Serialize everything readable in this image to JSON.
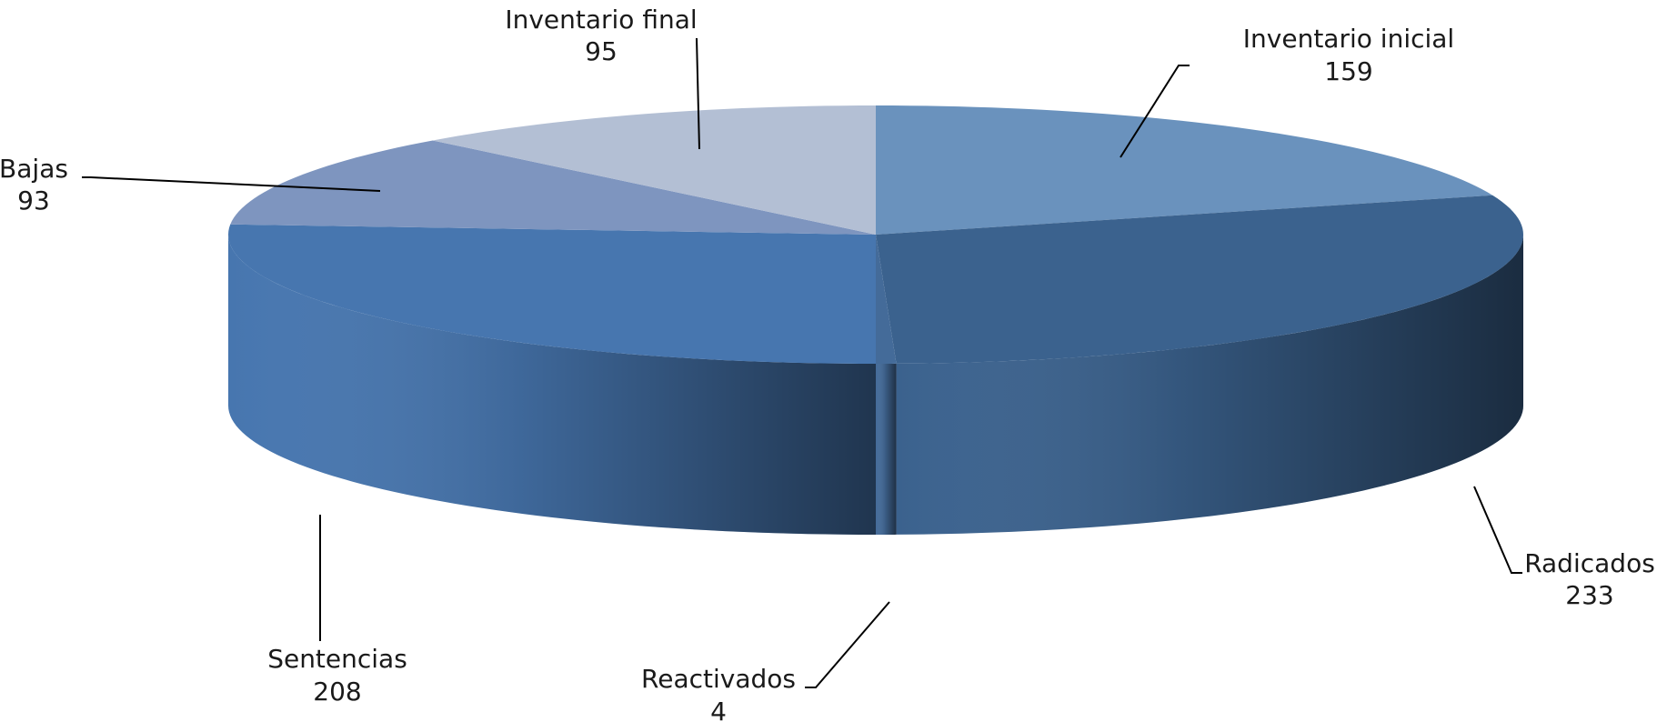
{
  "chart_data": {
    "type": "pie",
    "style": "3d",
    "slices": [
      {
        "category": "Inventario inicial",
        "value": 159,
        "color": "#6a92bd"
      },
      {
        "category": "Radicados",
        "value": 233,
        "color": "#3b628e"
      },
      {
        "category": "Reactivados",
        "value": 4,
        "color": "#446b99"
      },
      {
        "category": "Sentencias",
        "value": 208,
        "color": "#4776af"
      },
      {
        "category": "Bajas",
        "value": 93,
        "color": "#7e95bf"
      },
      {
        "category": "Inventario final",
        "value": 95,
        "color": "#b3bfd4"
      }
    ],
    "data_labels": "category-and-value",
    "legend": "none"
  }
}
